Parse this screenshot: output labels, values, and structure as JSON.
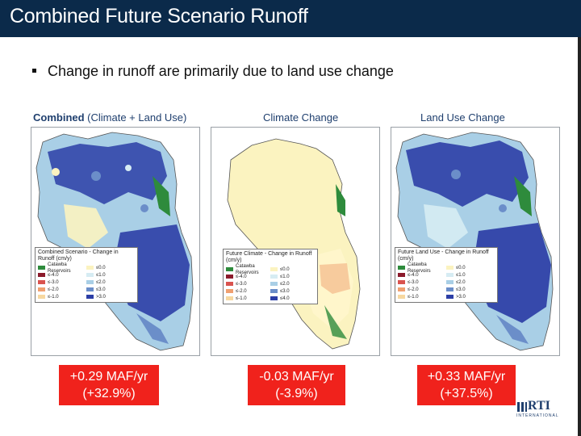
{
  "slide": {
    "title": "Combined Future Scenario Runoff",
    "bullet": "Change in runoff are primarily due to land use change"
  },
  "panels": [
    {
      "title_bold": "Combined",
      "title_rest": " (Climate + Land Use)",
      "legend_title": "Combined Scenario - Change in Runoff (cm/y)",
      "legend_left": [
        {
          "label": "Catawba Reservoirs",
          "color": "#2e8b3c"
        },
        {
          "label": "≤-4.0",
          "color": "#8b1a2b"
        },
        {
          "label": "≤-3.0",
          "color": "#d9534f"
        },
        {
          "label": "≤-2.0",
          "color": "#f0a070"
        },
        {
          "label": "≤-1.0",
          "color": "#f7d8a0"
        }
      ],
      "legend_right": [
        {
          "label": "≤0.0",
          "color": "#fbf3c0"
        },
        {
          "label": "≤1.0",
          "color": "#d6ecf3"
        },
        {
          "label": "≤2.0",
          "color": "#a9cfe6"
        },
        {
          "label": "≤3.0",
          "color": "#6b8ec9"
        },
        {
          "label": ">3.0",
          "color": "#2c3ea6"
        }
      ],
      "result_line1": "+0.29 MAF/yr",
      "result_line2": "(+32.9%)"
    },
    {
      "title_bold": "",
      "title_rest": "Climate Change",
      "legend_title": "Future Climate - Change in Runoff (cm/y)",
      "legend_left": [
        {
          "label": "Catawba Reservoirs",
          "color": "#2e8b3c"
        },
        {
          "label": "≤-4.0",
          "color": "#8b1a2b"
        },
        {
          "label": "≤-3.0",
          "color": "#d9534f"
        },
        {
          "label": "≤-2.0",
          "color": "#f0a070"
        },
        {
          "label": "≤-1.0",
          "color": "#f7d8a0"
        }
      ],
      "legend_right": [
        {
          "label": "≤0.0",
          "color": "#fbf3c0"
        },
        {
          "label": "≤1.0",
          "color": "#d6ecf3"
        },
        {
          "label": "≤2.0",
          "color": "#a9cfe6"
        },
        {
          "label": "≤3.0",
          "color": "#6b8ec9"
        },
        {
          "label": "≤4.0",
          "color": "#2c3ea6"
        }
      ],
      "result_line1": "-0.03 MAF/yr",
      "result_line2": "(-3.9%)"
    },
    {
      "title_bold": "",
      "title_rest": "Land Use Change",
      "legend_title": "Future Land Use - Change in Runoff (cm/y)",
      "legend_left": [
        {
          "label": "Catawba Reservoirs",
          "color": "#2e8b3c"
        },
        {
          "label": "≤-4.0",
          "color": "#8b1a2b"
        },
        {
          "label": "≤-3.0",
          "color": "#d9534f"
        },
        {
          "label": "≤-2.0",
          "color": "#f0a070"
        },
        {
          "label": "≤-1.0",
          "color": "#f7d8a0"
        }
      ],
      "legend_right": [
        {
          "label": "≤0.0",
          "color": "#fbf3c0"
        },
        {
          "label": "≤1.0",
          "color": "#d6ecf3"
        },
        {
          "label": "≤2.0",
          "color": "#a9cfe6"
        },
        {
          "label": "≤3.0",
          "color": "#6b8ec9"
        },
        {
          "label": ">3.0",
          "color": "#2c3ea6"
        }
      ],
      "result_line1": "+0.33 MAF/yr",
      "result_line2": "(+37.5%)"
    }
  ],
  "logo": {
    "text": "RTI",
    "subtext": "INTERNATIONAL"
  },
  "colors": {
    "header": "#0b2a4a",
    "result": "#f0221c",
    "title_text": "#1f3f6e"
  }
}
